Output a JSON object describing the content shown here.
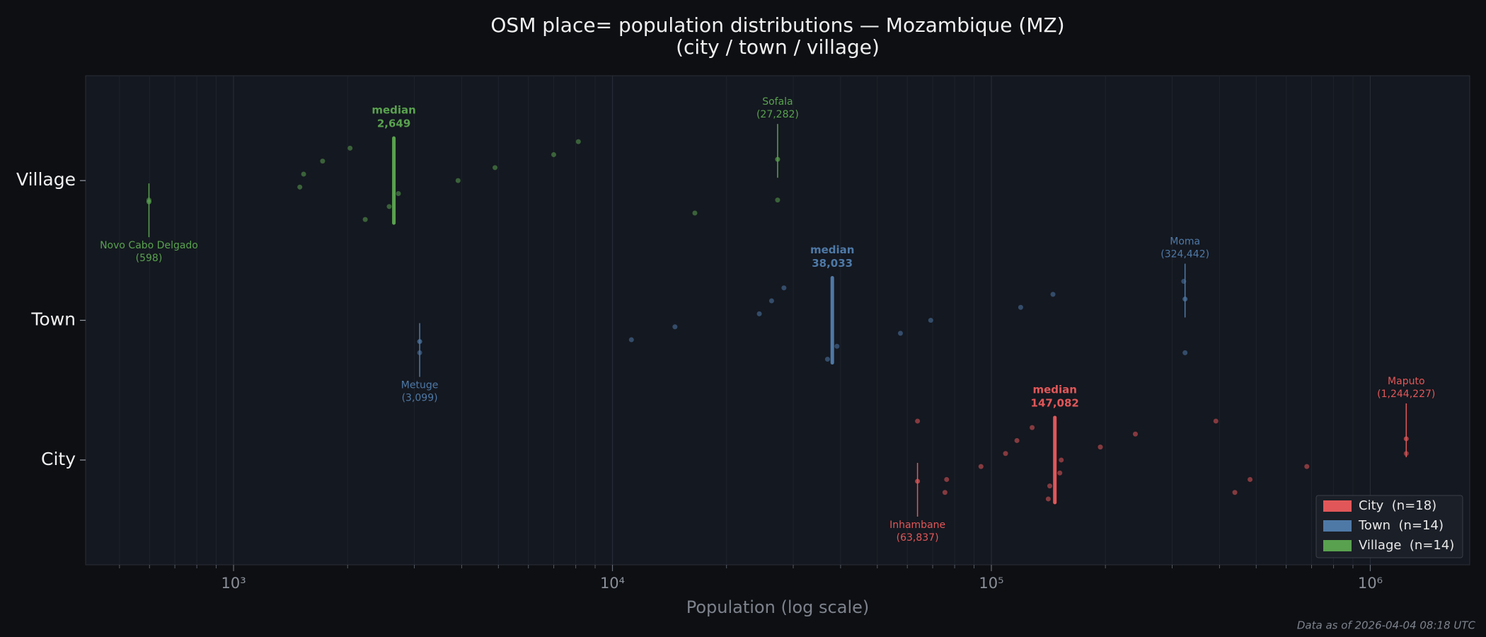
{
  "chart_data": {
    "type": "strip",
    "title": "OSM place= population distributions — Mozambique (MZ)",
    "subtitle": "(city / town / village)",
    "x_label": "Population (log scale)",
    "footer": "Data as of 2026-04-04 08:18 UTC",
    "log_x": true,
    "grid": true,
    "legend": "lower right",
    "categories": [
      "City",
      "Town",
      "Village"
    ],
    "median_text": "median",
    "xlim": [
      407,
      1830000
    ],
    "xticks": [
      {
        "value": 1000,
        "label": "10³"
      },
      {
        "value": 10000,
        "label": "10⁴"
      },
      {
        "value": 100000,
        "label": "10⁵"
      },
      {
        "value": 1000000,
        "label": "10⁶"
      }
    ],
    "xticks_minor": [
      500,
      600,
      700,
      800,
      900,
      2000,
      3000,
      4000,
      5000,
      6000,
      7000,
      8000,
      9000,
      20000,
      30000,
      40000,
      50000,
      60000,
      70000,
      80000,
      90000,
      200000,
      300000,
      400000,
      500000,
      600000,
      700000,
      800000,
      900000
    ],
    "series": [
      {
        "name": "City  (n=18)",
        "color": "#e15759",
        "values": [
          63837,
          75420,
          76200,
          93870,
          109000,
          116800,
          128100,
          141300,
          142600,
          151564,
          152900,
          193900,
          239900,
          391300,
          439100,
          481600,
          680000,
          1244227
        ],
        "median": 147082,
        "median_label": "147,082",
        "annotations": [
          {
            "text": "Inhambane",
            "value": 63837,
            "value_label": "(63,837)"
          },
          {
            "text": "Maputo",
            "value": 1244227,
            "value_label": "(1,244,227)"
          }
        ]
      },
      {
        "name": "Town  (n=14)",
        "color": "#4e79a7",
        "values": [
          3099,
          11220,
          14620,
          24410,
          26300,
          28350,
          36940,
          39126,
          57540,
          69180,
          119500,
          145400,
          321800,
          324442
        ],
        "median": 38033,
        "median_label": "38,033",
        "annotations": [
          {
            "text": "Metuge",
            "value": 3099,
            "value_label": "(3,099)"
          },
          {
            "text": "Moma",
            "value": 324442,
            "value_label": "(324,442)"
          }
        ]
      },
      {
        "name": "Village  (n=14)",
        "color": "#59a14f",
        "values": [
          598,
          1496,
          1531,
          1718,
          2030,
          2226,
          2575,
          2723,
          3913,
          4898,
          6998,
          8128,
          16500,
          27282
        ],
        "median": 2649,
        "median_label": "2,649",
        "annotations": [
          {
            "text": "Novo Cabo Delgado",
            "value": 598,
            "value_label": "(598)"
          },
          {
            "text": "Sofala",
            "value": 27282,
            "value_label": "(27,282)"
          }
        ]
      }
    ]
  }
}
